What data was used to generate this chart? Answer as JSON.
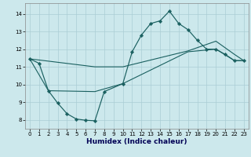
{
  "xlabel": "Humidex (Indice chaleur)",
  "bg_color": "#cce8ec",
  "grid_color": "#aacdd5",
  "line_color": "#1a6060",
  "xlim": [
    -0.5,
    23.5
  ],
  "ylim": [
    7.5,
    14.6
  ],
  "xticks": [
    0,
    1,
    2,
    3,
    4,
    5,
    6,
    7,
    8,
    9,
    10,
    11,
    12,
    13,
    14,
    15,
    16,
    17,
    18,
    19,
    20,
    21,
    22,
    23
  ],
  "yticks": [
    8,
    9,
    10,
    11,
    12,
    13,
    14
  ],
  "line_main_x": [
    0,
    1,
    2,
    3,
    4,
    5,
    6,
    7,
    8,
    10,
    11,
    12,
    13,
    14,
    15,
    16,
    17,
    18,
    19,
    20,
    21,
    22,
    23
  ],
  "line_main_y": [
    11.45,
    11.2,
    9.65,
    8.95,
    8.35,
    8.05,
    7.98,
    7.95,
    9.6,
    10.05,
    11.85,
    12.8,
    13.45,
    13.6,
    14.15,
    13.45,
    13.1,
    12.5,
    12.0,
    12.0,
    11.7,
    11.35,
    11.35
  ],
  "line_upper_x": [
    0,
    7,
    10,
    17,
    20,
    22,
    23
  ],
  "line_upper_y": [
    11.45,
    11.0,
    11.0,
    11.9,
    12.45,
    11.7,
    11.35
  ],
  "line_lower_x": [
    0,
    2,
    7,
    10,
    17,
    20,
    22,
    23
  ],
  "line_lower_y": [
    11.45,
    9.65,
    9.6,
    10.05,
    11.85,
    12.0,
    11.35,
    11.35
  ]
}
